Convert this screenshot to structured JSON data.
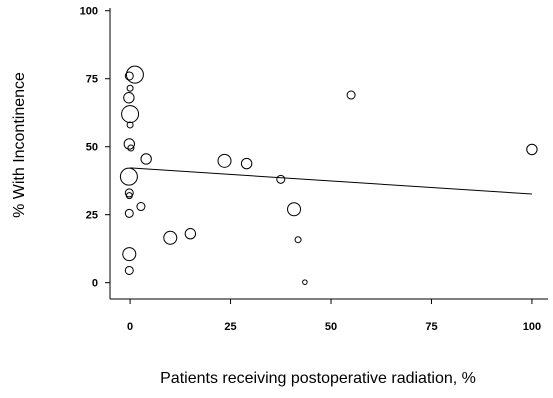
{
  "chart_data": {
    "type": "scatter",
    "title": "",
    "xlabel": "Patients receiving postoperative radiation, %",
    "ylabel": "% With Incontinence",
    "xlim": [
      -5,
      104
    ],
    "ylim": [
      -6,
      101
    ],
    "xticks": [
      0,
      25,
      50,
      75,
      100
    ],
    "yticks": [
      0,
      25,
      50,
      75,
      100
    ],
    "grid": false,
    "legend": "none",
    "marker": "open-circle-sized-by-weight",
    "points": [
      {
        "x": 1.2,
        "y": 76.5,
        "size": "xl"
      },
      {
        "x": -0.2,
        "y": 76.0,
        "size": "s"
      },
      {
        "x": 0.0,
        "y": 71.5,
        "size": "xs"
      },
      {
        "x": -0.3,
        "y": 68.0,
        "size": "m"
      },
      {
        "x": 0.0,
        "y": 62.0,
        "size": "xl"
      },
      {
        "x": 0.0,
        "y": 58.0,
        "size": "xs"
      },
      {
        "x": -0.2,
        "y": 51.0,
        "size": "m"
      },
      {
        "x": 0.2,
        "y": 49.5,
        "size": "xs"
      },
      {
        "x": 4.0,
        "y": 45.5,
        "size": "m"
      },
      {
        "x": -0.3,
        "y": 39.0,
        "size": "xl"
      },
      {
        "x": -0.2,
        "y": 33.0,
        "size": "s"
      },
      {
        "x": -0.2,
        "y": 32.0,
        "size": "xs"
      },
      {
        "x": 2.7,
        "y": 28.0,
        "size": "s"
      },
      {
        "x": -0.2,
        "y": 25.5,
        "size": "s"
      },
      {
        "x": -0.2,
        "y": 10.5,
        "size": "l"
      },
      {
        "x": -0.2,
        "y": 4.5,
        "size": "s"
      },
      {
        "x": 10.0,
        "y": 16.5,
        "size": "l"
      },
      {
        "x": 15.0,
        "y": 18.0,
        "size": "m"
      },
      {
        "x": 23.5,
        "y": 44.8,
        "size": "l"
      },
      {
        "x": 29.0,
        "y": 43.8,
        "size": "m"
      },
      {
        "x": 37.5,
        "y": 38.0,
        "size": "s"
      },
      {
        "x": 40.8,
        "y": 27.0,
        "size": "l"
      },
      {
        "x": 41.8,
        "y": 15.8,
        "size": "xs"
      },
      {
        "x": 43.5,
        "y": 0.2,
        "size": "xxs"
      },
      {
        "x": 55.0,
        "y": 69.0,
        "size": "s"
      },
      {
        "x": 100.0,
        "y": 49.0,
        "size": "m"
      }
    ],
    "regression_line": {
      "x": [
        0,
        100
      ],
      "y": [
        42.2,
        32.6
      ]
    },
    "colors": {
      "marker_stroke": "#000000",
      "marker_fill": "none",
      "axis": "#000000",
      "line": "#000000"
    }
  }
}
